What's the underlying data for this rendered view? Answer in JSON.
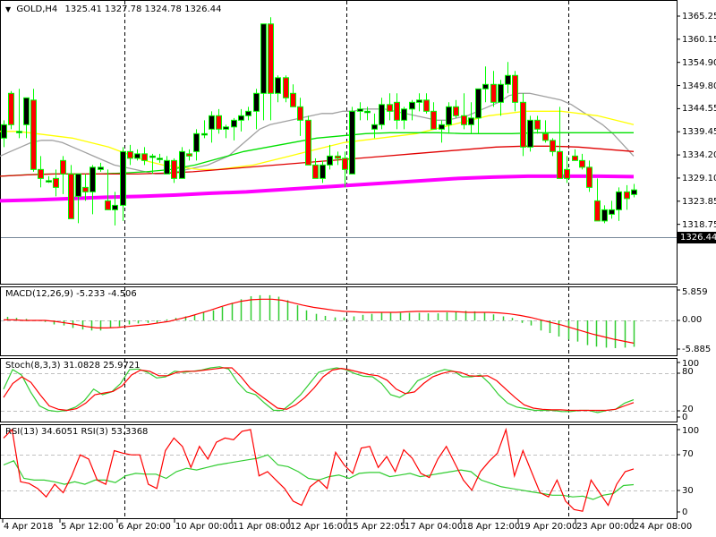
{
  "header": {
    "symbol": "GOLD,H4",
    "ohlc": "1325.41 1327.78 1324.78 1326.44",
    "menu_icon": "triangle-down-icon"
  },
  "colors": {
    "bull_body": "#000000",
    "bear_body": "#ff0000",
    "candle_outline": "#00ff00",
    "ma_fast": "#a0a0a0",
    "ma_yellow": "#ffff00",
    "ma_green": "#00e000",
    "ma_red": "#e00000",
    "ma_magenta": "#ff00ff",
    "macd_hist": "#32cd32",
    "macd_signal": "#ff0000",
    "stoch_main": "#32cd32",
    "stoch_signal": "#ff0000",
    "rsi_fast": "#ff0000",
    "rsi_slow": "#32cd32",
    "current_price_line": "#778899",
    "grid_level": "#c0c0c0"
  },
  "price_axis": {
    "ticks": [
      "1365.25",
      "1360.15",
      "1354.90",
      "1349.80",
      "1344.55",
      "1339.45",
      "1334.20",
      "1329.10",
      "1323.85",
      "1318.75"
    ],
    "current_price": "1326.44"
  },
  "panels": {
    "macd": {
      "label": "MACD(12,26,9) -5.233 -4.506",
      "ticks": [
        "5.859",
        "0.00",
        "-5.885"
      ]
    },
    "stoch": {
      "label": "Stoch(8,3,3) 31.0828 25.9721",
      "ticks": [
        "100",
        "80",
        "20",
        "0"
      ]
    },
    "rsi": {
      "label": "RSI(13) 34.6051  RSI(3) 53.3368",
      "ticks": [
        "100",
        "70",
        "30",
        "0"
      ]
    }
  },
  "time_axis": {
    "labels": [
      "4 Apr 2018",
      "5 Apr 12:00",
      "6 Apr 20:00",
      "10 Apr 00:00",
      "11 Apr 08:00",
      "12 Apr 16:00",
      "15 Apr 22:05",
      "17 Apr 04:00",
      "18 Apr 12:00",
      "19 Apr 20:00",
      "23 Apr 00:00",
      "24 Apr 08:00"
    ]
  },
  "chart_data": {
    "type": "candlestick",
    "title": "GOLD,H4 1325.41 1327.78 1324.78 1326.44",
    "xlabel": "",
    "ylabel": "Price",
    "ylim": [
      1317.5,
      1367.5
    ],
    "legend_position": "none",
    "grid": false,
    "x": [
      "4 Apr 2018",
      "5 Apr 12:00",
      "6 Apr 20:00",
      "10 Apr 00:00",
      "11 Apr 08:00",
      "12 Apr 16:00",
      "15 Apr 22:05",
      "17 Apr 04:00",
      "18 Apr 12:00",
      "19 Apr 20:00",
      "23 Apr 00:00",
      "24 Apr 08:00"
    ],
    "candles": [
      [
        1338,
        1342,
        1336,
        1341
      ],
      [
        1348,
        1348.5,
        1340,
        1341
      ],
      [
        1339.5,
        1349,
        1338,
        1339.5
      ],
      [
        1341,
        1347,
        1338,
        1347
      ],
      [
        1346.5,
        1349,
        1330.5,
        1331
      ],
      [
        1331,
        1334,
        1327,
        1329
      ],
      [
        1328.5,
        1329.5,
        1328,
        1328.5
      ],
      [
        1329,
        1331,
        1325,
        1327
      ],
      [
        1333,
        1334,
        1325.5,
        1330
      ],
      [
        1330,
        1332,
        1320,
        1320
      ],
      [
        1325,
        1330,
        1319,
        1330
      ],
      [
        1327,
        1330,
        1324,
        1326
      ],
      [
        1326,
        1332,
        1321,
        1331.5
      ],
      [
        1331,
        1332.5,
        1330.5,
        1331.5
      ],
      [
        1324,
        1331,
        1322,
        1322
      ],
      [
        1322,
        1326,
        1318.5,
        1323
      ],
      [
        1323,
        1336,
        1319.5,
        1335
      ],
      [
        1335,
        1336.5,
        1332,
        1333.5
      ],
      [
        1333.5,
        1335.5,
        1333,
        1334.5
      ],
      [
        1334.5,
        1336,
        1332,
        1333
      ],
      [
        1334,
        1334.5,
        1330,
        1334
      ],
      [
        1333.5,
        1334.5,
        1332.5,
        1333.5
      ],
      [
        1330,
        1334,
        1330,
        1333
      ],
      [
        1333,
        1333.5,
        1328,
        1329
      ],
      [
        1329,
        1336,
        1329,
        1335
      ],
      [
        1334.5,
        1335.5,
        1333,
        1334
      ],
      [
        1335,
        1340,
        1333,
        1339
      ],
      [
        1339,
        1342,
        1338,
        1339
      ],
      [
        1340,
        1344,
        1337,
        1343
      ],
      [
        1343,
        1344.5,
        1339,
        1340
      ],
      [
        1340,
        1341,
        1338,
        1340.5
      ],
      [
        1340.5,
        1342.5,
        1337.5,
        1342
      ],
      [
        1342,
        1344.5,
        1339.5,
        1343
      ],
      [
        1343,
        1345,
        1342,
        1344
      ],
      [
        1344,
        1349,
        1340,
        1348
      ],
      [
        1348,
        1356,
        1342,
        1363.5
      ],
      [
        1363.5,
        1365,
        1342,
        1348
      ],
      [
        1348,
        1352,
        1346,
        1351.5
      ],
      [
        1351.5,
        1352,
        1346,
        1347
      ],
      [
        1348,
        1350,
        1345,
        1345
      ],
      [
        1345,
        1347,
        1338.5,
        1342
      ],
      [
        1342,
        1343,
        1332,
        1332
      ],
      [
        1332,
        1333.5,
        1330,
        1329
      ],
      [
        1329,
        1333,
        1328,
        1332
      ],
      [
        1332,
        1336.5,
        1331,
        1334
      ],
      [
        1334,
        1335,
        1332,
        1333.5
      ],
      [
        1333.5,
        1335,
        1327,
        1331
      ],
      [
        1330,
        1345,
        1330,
        1344
      ],
      [
        1344,
        1346,
        1342,
        1344.5
      ],
      [
        1344,
        1345,
        1342,
        1344
      ],
      [
        1340,
        1343.5,
        1338,
        1341
      ],
      [
        1341,
        1347,
        1340,
        1345.5
      ],
      [
        1345.5,
        1348,
        1342,
        1344
      ],
      [
        1346,
        1348,
        1340,
        1342
      ],
      [
        1342,
        1345,
        1340,
        1344.5
      ],
      [
        1344.5,
        1346.5,
        1342,
        1346
      ],
      [
        1346,
        1348,
        1344,
        1346.5
      ],
      [
        1346.5,
        1348,
        1343.5,
        1344
      ],
      [
        1344,
        1346,
        1342,
        1340
      ],
      [
        1340,
        1342,
        1337,
        1341
      ],
      [
        1341,
        1346,
        1339,
        1345
      ],
      [
        1345,
        1346.5,
        1342.5,
        1343
      ],
      [
        1343,
        1348,
        1340,
        1341
      ],
      [
        1341,
        1346,
        1339,
        1342.5
      ],
      [
        1342.5,
        1349,
        1339,
        1349
      ],
      [
        1349,
        1354,
        1346,
        1350
      ],
      [
        1350,
        1353,
        1345,
        1346
      ],
      [
        1346,
        1351,
        1343,
        1350
      ],
      [
        1350,
        1355,
        1348,
        1352
      ],
      [
        1352,
        1353,
        1344,
        1346
      ],
      [
        1346,
        1348,
        1334,
        1336
      ],
      [
        1336,
        1343,
        1335,
        1342
      ],
      [
        1342,
        1343,
        1339,
        1340
      ],
      [
        1339,
        1342,
        1337,
        1337.5
      ],
      [
        1337.5,
        1338,
        1334,
        1335
      ],
      [
        1335,
        1345,
        1330,
        1329
      ],
      [
        1331,
        1334,
        1328,
        1329
      ],
      [
        1334,
        1335.5,
        1334,
        1333
      ],
      [
        1333,
        1334.5,
        1331,
        1331.5
      ],
      [
        1331.5,
        1333,
        1326,
        1327
      ],
      [
        1324,
        1329,
        1323,
        1319.5
      ],
      [
        1319.5,
        1323,
        1319,
        1322
      ],
      [
        1321,
        1324,
        1320,
        1322
      ],
      [
        1322,
        1327,
        1319.5,
        1326
      ],
      [
        1326,
        1327.5,
        1322,
        1324.5
      ],
      [
        1325.41,
        1327.78,
        1324.78,
        1326.44
      ]
    ],
    "series": [
      {
        "name": "MA gray",
        "color": "#a0a0a0",
        "values": [
          1334,
          1335,
          1336,
          1337,
          1337.5,
          1337.5,
          1337,
          1336,
          1335,
          1334,
          1333,
          1332,
          1331.5,
          1331,
          1330.5,
          1330,
          1330,
          1330.5,
          1331,
          1331.5,
          1332,
          1333,
          1334,
          1336,
          1338,
          1340,
          1341,
          1341.5,
          1342,
          1342.5,
          1343,
          1343.5,
          1343.5,
          1344,
          1344,
          1344.5,
          1344.5,
          1344.5,
          1344,
          1343.5,
          1343,
          1342.5,
          1342,
          1342,
          1342.5,
          1343,
          1344,
          1345,
          1346,
          1347.5,
          1348,
          1348,
          1347.5,
          1347,
          1346.5,
          1345.5,
          1344,
          1342.5,
          1341,
          1339,
          1336.5,
          1334
        ]
      },
      {
        "name": "MA yellow",
        "color": "#ffff00",
        "values": [
          1339.5,
          1339.5,
          1339,
          1338.5,
          1338,
          1337,
          1336,
          1334.5,
          1333,
          1332,
          1331.5,
          1331,
          1331,
          1331.5,
          1332,
          1333,
          1334,
          1335,
          1336,
          1337,
          1337.5,
          1338,
          1338.5,
          1339,
          1340,
          1341,
          1342,
          1343,
          1343.5,
          1344,
          1344,
          1344,
          1343.5,
          1343,
          1342,
          1341
        ]
      },
      {
        "name": "MA green",
        "color": "#00e000",
        "values": [
          1329.5,
          1329.8,
          1330,
          1330,
          1330,
          1330.2,
          1330.5,
          1331,
          1332,
          1333.5,
          1335,
          1336,
          1337,
          1338,
          1338.5,
          1339,
          1339.2,
          1339.2,
          1339.2,
          1339,
          1339,
          1339,
          1339.2,
          1339.2,
          1339.2,
          1339.2,
          1339.2
        ]
      },
      {
        "name": "MA red",
        "color": "#e00000",
        "values": [
          1329.5,
          1329.8,
          1330,
          1330,
          1330,
          1330,
          1330.2,
          1330.5,
          1331,
          1331.5,
          1332,
          1332.5,
          1333,
          1333.5,
          1334,
          1334.5,
          1335,
          1335.5,
          1336,
          1336.2,
          1336.2,
          1336,
          1335.5,
          1335
        ]
      },
      {
        "name": "MA magenta",
        "color": "#ff00ff",
        "values": [
          1324,
          1324.2,
          1324.5,
          1324.8,
          1325,
          1325.3,
          1325.7,
          1326,
          1326.5,
          1327,
          1327.5,
          1328,
          1328.5,
          1329,
          1329.3,
          1329.5,
          1329.5,
          1329.5,
          1329.4
        ]
      }
    ],
    "indicators": {
      "macd": {
        "label": "MACD(12,26,9) -5.233 -4.506",
        "ylim": [
          -5.885,
          5.859
        ],
        "histogram": [
          0.7,
          0.5,
          0.3,
          0.1,
          -0.3,
          -0.8,
          -1.0,
          -1.5,
          -1.8,
          -2.0,
          -2.0,
          -1.5,
          -1.2,
          -0.8,
          -0.6,
          -0.5,
          -0.5,
          0.2,
          0.5,
          0.8,
          1.1,
          1.6,
          2.0,
          2.7,
          3.5,
          4.2,
          4.8,
          5.0,
          5.0,
          4.7,
          4.0,
          3.0,
          2.0,
          1.3,
          0.9,
          0.6,
          0.6,
          0.8,
          1.1,
          1.3,
          1.5,
          1.5,
          1.5,
          1.5,
          1.5,
          1.4,
          1.4,
          1.6,
          1.8,
          1.9,
          1.8,
          1.5,
          1.2,
          0.8,
          0.5,
          -0.5,
          -1.0,
          -2.0,
          -2.5,
          -3.2,
          -3.8,
          -4.2,
          -4.9,
          -5.2,
          -5.4,
          -5.5,
          -5.4,
          -5.233
        ],
        "signal": [
          0.1,
          0.1,
          0,
          0,
          0,
          -0.2,
          -0.5,
          -0.8,
          -1.2,
          -1.5,
          -1.5,
          -1.4,
          -1.2,
          -1.0,
          -0.8,
          -0.5,
          -0.2,
          0.3,
          0.8,
          1.4,
          2.0,
          2.7,
          3.3,
          3.8,
          4.1,
          4.2,
          4.2,
          4.0,
          3.5,
          3.0,
          2.6,
          2.3,
          2.0,
          1.8,
          1.7,
          1.6,
          1.6,
          1.6,
          1.6,
          1.7,
          1.8,
          1.8,
          1.8,
          1.8,
          1.7,
          1.6,
          1.6,
          1.6,
          1.5,
          1.3,
          1.0,
          0.6,
          0.1,
          -0.4,
          -0.9,
          -1.5,
          -2.1,
          -2.7,
          -3.2,
          -3.7,
          -4.1,
          -4.506
        ]
      },
      "stochastic": {
        "label": "Stoch(8,3,3) 31.0828 25.9721",
        "ylim": [
          0,
          100
        ],
        "levels": [
          80,
          20
        ],
        "main": [
          50,
          85,
          75,
          45,
          20,
          12,
          10,
          12,
          18,
          30,
          50,
          40,
          45,
          60,
          85,
          86,
          80,
          70,
          72,
          82,
          80,
          82,
          84,
          88,
          90,
          86,
          62,
          45,
          40,
          25,
          12,
          12,
          25,
          40,
          60,
          80,
          85,
          88,
          85,
          78,
          73,
          72,
          60,
          40,
          35,
          45,
          65,
          72,
          80,
          85,
          82,
          72,
          72,
          75,
          60,
          40,
          25,
          18,
          15,
          12,
          12,
          12,
          10,
          10,
          12,
          12,
          8,
          12,
          14,
          25,
          31.0828
        ],
        "signal": [
          35,
          60,
          72,
          62,
          40,
          20,
          14,
          12,
          15,
          25,
          40,
          43,
          46,
          56,
          75,
          84,
          82,
          74,
          74,
          80,
          82,
          82,
          84,
          86,
          88,
          88,
          72,
          52,
          40,
          28,
          16,
          14,
          22,
          35,
          52,
          72,
          84,
          87,
          84,
          80,
          76,
          74,
          66,
          50,
          42,
          45,
          60,
          72,
          78,
          82,
          80,
          74,
          73,
          74,
          65,
          50,
          35,
          22,
          16,
          14,
          13,
          13,
          12,
          12,
          12,
          12,
          12,
          14,
          20,
          25.9721
        ]
      },
      "rsi": {
        "label": "RSI(13) 34.6051  RSI(3) 53.3368",
        "ylim": [
          0,
          100
        ],
        "levels": [
          70,
          30
        ],
        "rsi13": [
          58,
          63,
          42,
          40,
          40,
          38,
          35,
          38,
          35,
          40,
          40,
          37,
          45,
          48,
          47,
          47,
          42,
          50,
          54,
          52,
          55,
          58,
          60,
          62,
          64,
          66,
          70,
          58,
          56,
          50,
          42,
          40,
          44,
          46,
          42,
          48,
          49,
          49,
          44,
          46,
          48,
          44,
          46,
          48,
          50,
          52,
          50,
          40,
          36,
          32,
          30,
          28,
          26,
          24,
          22,
          22,
          20,
          21,
          17,
          22,
          24,
          33.5,
          34.6051
        ],
        "rsi3": [
          90,
          100,
          38,
          36,
          30,
          20,
          35,
          25,
          45,
          70,
          65,
          40,
          35,
          75,
          72,
          70,
          70,
          35,
          30,
          75,
          90,
          80,
          55,
          80,
          65,
          85,
          90,
          88,
          98,
          100,
          45,
          50,
          40,
          30,
          15,
          10,
          32,
          40,
          30,
          73,
          58,
          48,
          78,
          80,
          55,
          68,
          50,
          76,
          66,
          48,
          43,
          65,
          80,
          60,
          40,
          28,
          50,
          62,
          72,
          100,
          45,
          75,
          50,
          25,
          20,
          40,
          15,
          5,
          3,
          40,
          25,
          10,
          35,
          50,
          53.3368
        ]
      }
    }
  }
}
